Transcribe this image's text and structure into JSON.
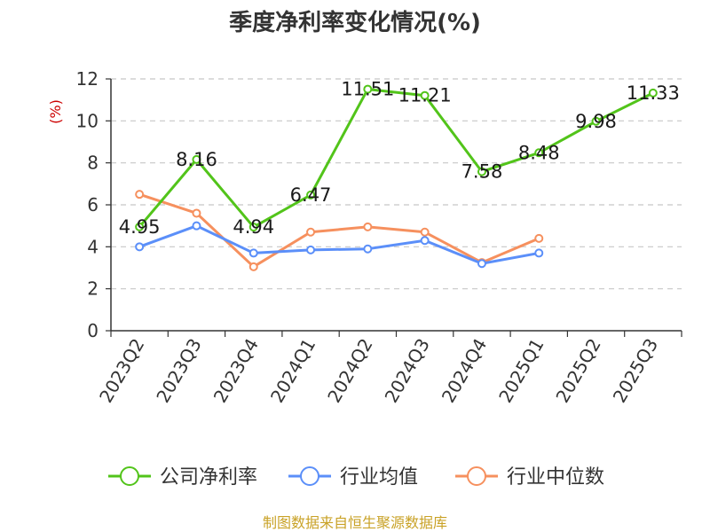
{
  "chart_data": {
    "type": "line",
    "title": "季度净利率变化情况(%)",
    "ylabel": "(%)",
    "xlabel": "",
    "ylim": [
      0,
      12
    ],
    "yticks": [
      0,
      2,
      4,
      6,
      8,
      10,
      12
    ],
    "grid": true,
    "legend_position": "bottom",
    "categories": [
      "2023Q2",
      "2023Q3",
      "2023Q4",
      "2024Q1",
      "2024Q2",
      "2024Q3",
      "2024Q4",
      "2025Q1",
      "2025Q2",
      "2025Q3"
    ],
    "series": [
      {
        "name": "公司净利率",
        "color": "#52c41a",
        "values": [
          4.95,
          8.16,
          4.94,
          6.47,
          11.51,
          11.21,
          7.58,
          8.48,
          9.98,
          11.33
        ],
        "labels": [
          "4.95",
          "8.16",
          "4.94",
          "6.47",
          "11.51",
          "11.21",
          "7.58",
          "8.48",
          "9.98",
          "11.33"
        ]
      },
      {
        "name": "行业均值",
        "color": "#5b8ff9",
        "values": [
          4.0,
          5.0,
          3.7,
          3.85,
          3.9,
          4.3,
          3.2,
          3.7,
          null,
          null
        ]
      },
      {
        "name": "行业中位数",
        "color": "#f6905e",
        "values": [
          6.5,
          5.6,
          3.05,
          4.7,
          4.95,
          4.7,
          3.25,
          4.4,
          null,
          null
        ]
      }
    ],
    "source": "制图数据来自恒生聚源数据库",
    "source_color": "#c9a227",
    "ylabel_color": "#cc0000"
  }
}
